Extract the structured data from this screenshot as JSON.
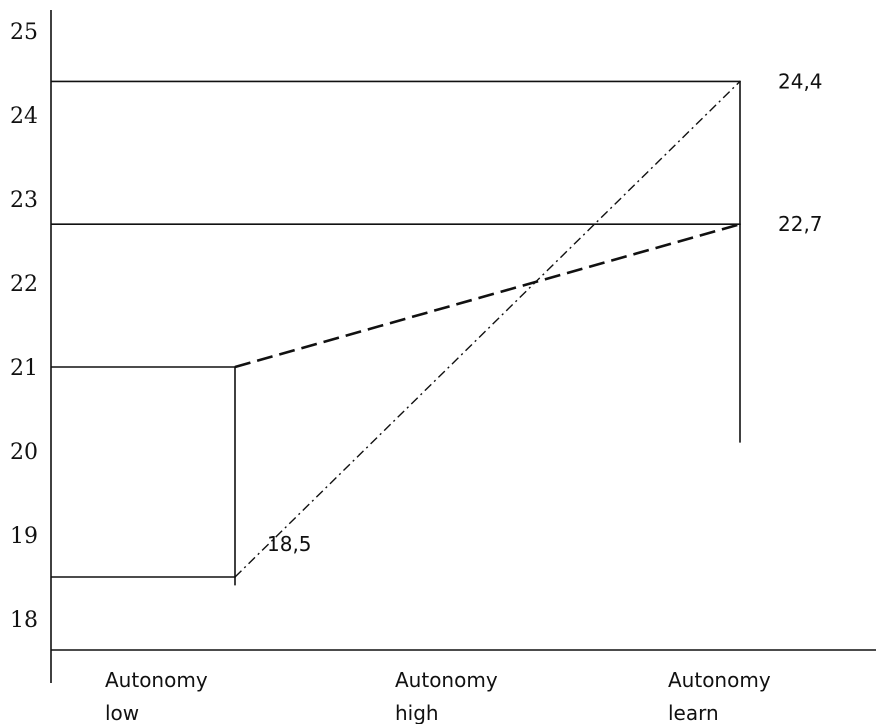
{
  "chart_data": {
    "type": "line",
    "title": "",
    "xlabel": "",
    "ylabel": "",
    "categories": [
      "Autonomy low",
      "Autonomy high",
      "Autonomy learn"
    ],
    "x_tick_lines": [
      [
        "Autonomy",
        "low"
      ],
      [
        "Autonomy",
        "high"
      ],
      [
        "Autonomy",
        "learn"
      ]
    ],
    "y_ticks": [
      "18",
      "19",
      "20",
      "21",
      "22",
      "23",
      "24",
      "25"
    ],
    "ylim": [
      17.8,
      25.2
    ],
    "grid": false,
    "legend": "none",
    "series": [
      {
        "style": "dashed",
        "points": [
          {
            "category": "Autonomy low",
            "y": 21
          },
          {
            "category": "Autonomy learn",
            "y": 22.7
          }
        ]
      },
      {
        "style": "dash-dot",
        "points": [
          {
            "category": "Autonomy low",
            "y": 18.5
          },
          {
            "category": "Autonomy learn",
            "y": 24.4
          }
        ]
      }
    ],
    "reference_lines": [
      {
        "orientation": "horizontal",
        "y": 24.4,
        "from": "axis",
        "to": "Autonomy learn"
      },
      {
        "orientation": "horizontal",
        "y": 22.7,
        "from": "axis",
        "to": "Autonomy learn"
      },
      {
        "orientation": "horizontal",
        "y": 21,
        "from": "axis",
        "to": "Autonomy low"
      },
      {
        "orientation": "horizontal",
        "y": 18.5,
        "from": "axis",
        "to": "Autonomy low"
      },
      {
        "orientation": "vertical",
        "category": "Autonomy low",
        "y_from": 18.4,
        "y_to": 21
      },
      {
        "orientation": "vertical",
        "category": "Autonomy learn",
        "y_from": 20.1,
        "y_to": 24.4
      }
    ],
    "data_labels": [
      {
        "text": "24,4",
        "category": "Autonomy learn",
        "y": 24.4
      },
      {
        "text": "22,7",
        "category": "Autonomy learn",
        "y": 22.7
      },
      {
        "text": "18,5",
        "category": "Autonomy low",
        "y": 18.5
      }
    ]
  }
}
